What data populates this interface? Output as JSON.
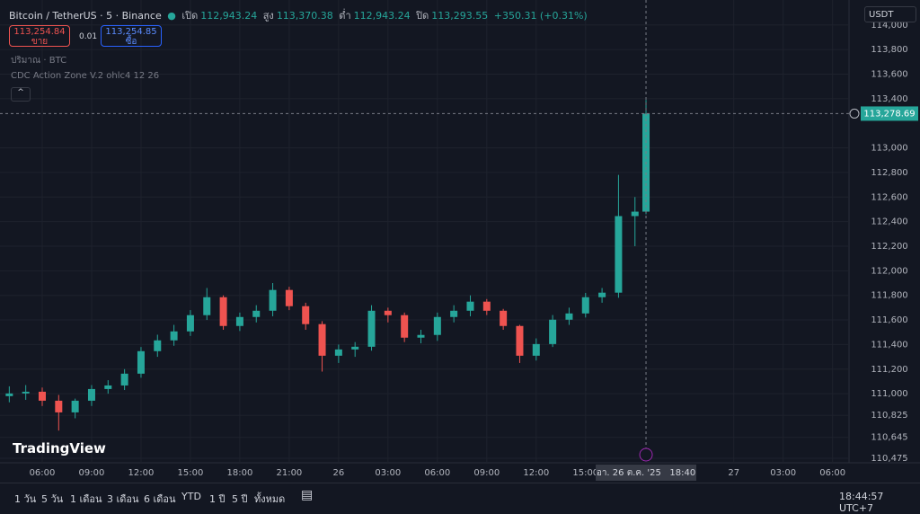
{
  "header": {
    "symbol": "Bitcoin / TetherUS · 5 · Binance",
    "open_label": "เปิด",
    "open": "112,943.24",
    "high_label": "สูง",
    "high": "113,370.38",
    "low_label": "ต่ำ",
    "low": "112,943.24",
    "close_label": "ปิด",
    "close": "113,293.55",
    "change": "+350.31 (+0.31%)"
  },
  "trade": {
    "sell_price": "113,254.84",
    "sell_label": "ขาย",
    "spread": "0.01",
    "buy_price": "113,254.85",
    "buy_label": "ซื้อ"
  },
  "indicators": [
    "ปริมาณ · BTC",
    "CDC Action Zone V.2 ohlc4 12 26"
  ],
  "currency": "USDT",
  "logo": "TradingView",
  "toolbar": {
    "ranges": [
      "1 วัน",
      "5 วัน",
      "1 เดือน",
      "3 เดือน",
      "6 เดือน",
      "YTD",
      "1 ปี",
      "5 ปี",
      "ทั้งหมด"
    ],
    "clock": "18:44:57 UTC+7"
  },
  "chart_data": {
    "type": "candlestick",
    "up_color": "#26a69a",
    "down_color": "#ef5350",
    "x": [
      4,
      5,
      6,
      7,
      8,
      9,
      10,
      11,
      12,
      13,
      14,
      15,
      16,
      17,
      18,
      19,
      20,
      21,
      22,
      23,
      24,
      25,
      26,
      27,
      28,
      29,
      30,
      31,
      32,
      33,
      34,
      35,
      36,
      37,
      38,
      39,
      40,
      41,
      42,
      42.67
    ],
    "open": [
      110980,
      111002,
      111016,
      110943,
      110848,
      110943,
      111038,
      111067,
      111163,
      111346,
      111434,
      111507,
      111639,
      111785,
      111551,
      111624,
      111675,
      111844,
      111712,
      111566,
      111309,
      111360,
      111382,
      111675,
      111639,
      111456,
      111478,
      111624,
      111675,
      111749,
      111675,
      111551,
      111309,
      111404,
      111602,
      111653,
      111785,
      111822,
      112445,
      112481
    ],
    "high": [
      111060,
      111070,
      111050,
      110990,
      110960,
      111070,
      111110,
      111200,
      111380,
      111480,
      111560,
      111680,
      111860,
      111800,
      111660,
      111720,
      111900,
      111870,
      111740,
      111590,
      111400,
      111420,
      111720,
      111700,
      111660,
      111520,
      111660,
      111720,
      111800,
      111770,
      111690,
      111560,
      111450,
      111640,
      111700,
      111820,
      111860,
      112780,
      112600,
      113390
    ],
    "low": [
      110930,
      110950,
      110900,
      110700,
      110800,
      110900,
      111000,
      111030,
      111130,
      111300,
      111390,
      111470,
      111600,
      111520,
      111510,
      111580,
      111630,
      111680,
      111520,
      111180,
      111250,
      111300,
      111350,
      111580,
      111420,
      111410,
      111430,
      111580,
      111630,
      111640,
      111520,
      111250,
      111270,
      111380,
      111560,
      111620,
      111740,
      111780,
      112200,
      112460
    ],
    "close": [
      111002,
      111016,
      110943,
      110848,
      110943,
      111038,
      111067,
      111163,
      111346,
      111434,
      111507,
      111639,
      111785,
      111551,
      111624,
      111675,
      111844,
      111712,
      111566,
      111309,
      111360,
      111382,
      111675,
      111639,
      111456,
      111478,
      111624,
      111675,
      111749,
      111675,
      111551,
      111309,
      111404,
      111602,
      111653,
      111785,
      111822,
      112445,
      112481,
      113279
    ],
    "xlim": [
      3.436,
      55
    ],
    "ylim": [
      110438,
      114203
    ],
    "xticks": [
      {
        "value": 6,
        "label": "06:00"
      },
      {
        "value": 9,
        "label": "09:00"
      },
      {
        "value": 12,
        "label": "12:00"
      },
      {
        "value": 15,
        "label": "15:00"
      },
      {
        "value": 18,
        "label": "18:00"
      },
      {
        "value": 21,
        "label": "21:00"
      },
      {
        "value": 24,
        "label": "26"
      },
      {
        "value": 27,
        "label": "03:00"
      },
      {
        "value": 30,
        "label": "06:00"
      },
      {
        "value": 33,
        "label": "09:00"
      },
      {
        "value": 36,
        "label": "12:00"
      },
      {
        "value": 39,
        "label": "15:00"
      },
      {
        "value": 48,
        "label": "27"
      },
      {
        "value": 51,
        "label": "03:00"
      },
      {
        "value": 54,
        "label": "06:00"
      }
    ],
    "yticks": [
      {
        "value": 114000,
        "label": "114,000"
      },
      {
        "value": 113800,
        "label": "113,800"
      },
      {
        "value": 113600,
        "label": "113,600"
      },
      {
        "value": 113400,
        "label": "113,400"
      },
      {
        "value": 113000,
        "label": "113,000"
      },
      {
        "value": 112800,
        "label": "112,800"
      },
      {
        "value": 112600,
        "label": "112,600"
      },
      {
        "value": 112400,
        "label": "112,400"
      },
      {
        "value": 112200,
        "label": "112,200"
      },
      {
        "value": 112000,
        "label": "112,000"
      },
      {
        "value": 111800,
        "label": "111,800"
      },
      {
        "value": 111600,
        "label": "111,600"
      },
      {
        "value": 111400,
        "label": "111,400"
      },
      {
        "value": 111200,
        "label": "111,200"
      },
      {
        "value": 111000,
        "label": "111,000"
      },
      {
        "value": 110825,
        "label": "110,825"
      },
      {
        "value": 110645,
        "label": "110,645"
      },
      {
        "value": 110475,
        "label": "110,475"
      }
    ],
    "grid": true,
    "price_line": {
      "value": 113278.69,
      "label": "113,278.69"
    },
    "crosshair": {
      "x": 42.67,
      "label": "อา. 26 ต.ค. '25   18:40"
    }
  }
}
